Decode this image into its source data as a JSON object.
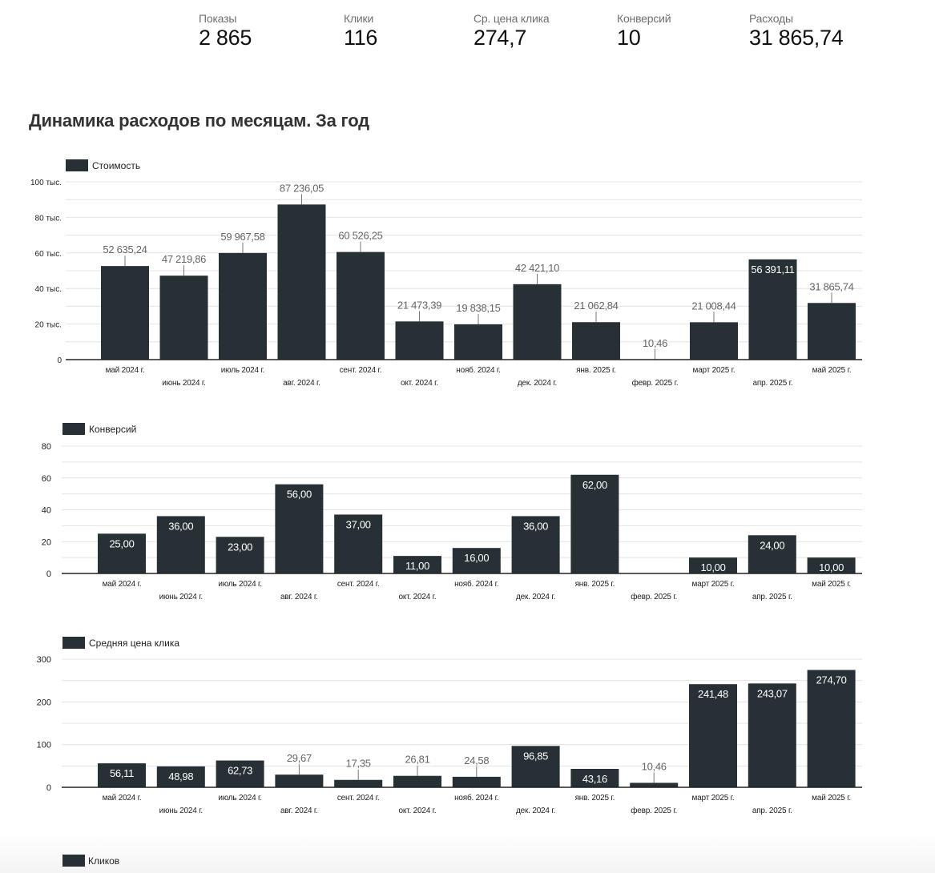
{
  "kpis": [
    {
      "label": "Показы",
      "value": "2 865"
    },
    {
      "label": "Клики",
      "value": "116"
    },
    {
      "label": "Ср. цена клика",
      "value": "274,7"
    },
    {
      "label": "Конверсий",
      "value": "10"
    },
    {
      "label": "Расходы",
      "value": "31 865,74"
    }
  ],
  "page_title": "Динамика расходов по месяцам. За год",
  "colors": {
    "bar": "#263035",
    "grid": "#e4e4e4",
    "axis": "#222222",
    "label_outside": "#666666",
    "label_inside": "#ffffff"
  },
  "chart_data": [
    {
      "type": "bar",
      "title": "",
      "legend": "Стоимость",
      "legend_position": "top-left",
      "categories": [
        "май 2024 г.",
        "июнь 2024 г.",
        "июль 2024 г.",
        "авг. 2024 г.",
        "сент. 2024 г.",
        "окт. 2024 г.",
        "нояб. 2024 г.",
        "дек. 2024 г.",
        "янв. 2025 г.",
        "февр. 2025 г.",
        "март 2025 г.",
        "апр. 2025 г.",
        "май 2025 г."
      ],
      "values": [
        52635.24,
        47219.86,
        59967.58,
        87236.05,
        60526.25,
        21473.39,
        19838.15,
        42421.1,
        21062.84,
        10.46,
        21008.44,
        56391.11,
        31865.74
      ],
      "data_labels": [
        "52 635,24",
        "47 219,86",
        "59 967,58",
        "87 236,05",
        "60 526,25",
        "21 473,39",
        "19 838,15",
        "42 421,10",
        "21 062,84",
        "10,46",
        "21 008,44",
        "56 391,11",
        "31 865,74"
      ],
      "label_inside": [
        false,
        false,
        false,
        false,
        false,
        false,
        false,
        false,
        false,
        false,
        false,
        true,
        false
      ],
      "ylim": [
        0,
        100000
      ],
      "yticks": [
        0,
        20000,
        40000,
        60000,
        80000,
        100000
      ],
      "ytick_labels": [
        "0",
        "20 тыс.",
        "40 тыс.",
        "60 тыс.",
        "80 тыс.",
        "100 тыс."
      ],
      "grid_step": 10000,
      "grid": true
    },
    {
      "type": "bar",
      "title": "",
      "legend": "Конверсий",
      "legend_position": "top-left",
      "categories": [
        "май 2024 г.",
        "июнь 2024 г.",
        "июль 2024 г.",
        "авг. 2024 г.",
        "сент. 2024 г.",
        "окт. 2024 г.",
        "нояб. 2024 г.",
        "дек. 2024 г.",
        "янв. 2025 г.",
        "февр. 2025 г.",
        "март 2025 г.",
        "апр. 2025 г.",
        "май 2025 г."
      ],
      "values": [
        25,
        36,
        23,
        56,
        37,
        11,
        16,
        36,
        62,
        0,
        10,
        24,
        10
      ],
      "data_labels": [
        "25,00",
        "36,00",
        "23,00",
        "56,00",
        "37,00",
        "11,00",
        "16,00",
        "36,00",
        "62,00",
        "",
        "10,00",
        "24,00",
        "10,00"
      ],
      "label_inside": [
        true,
        true,
        true,
        true,
        true,
        true,
        true,
        true,
        true,
        true,
        true,
        true,
        true
      ],
      "ylim": [
        0,
        80
      ],
      "yticks": [
        0,
        20,
        40,
        60,
        80
      ],
      "ytick_labels": [
        "0",
        "20",
        "40",
        "60",
        "80"
      ],
      "grid_step": 10,
      "grid": true
    },
    {
      "type": "bar",
      "title": "",
      "legend": "Средняя цена клика",
      "legend_position": "top-left",
      "categories": [
        "май 2024 г.",
        "июнь 2024 г.",
        "июль 2024 г.",
        "авг. 2024 г.",
        "сент. 2024 г.",
        "окт. 2024 г.",
        "нояб. 2024 г.",
        "дек. 2024 г.",
        "янв. 2025 г.",
        "февр. 2025 г.",
        "март 2025 г.",
        "апр. 2025 г.",
        "май 2025 г."
      ],
      "values": [
        56.11,
        48.98,
        62.73,
        29.67,
        17.35,
        26.81,
        24.58,
        96.85,
        43.16,
        10.46,
        241.48,
        243.07,
        274.7
      ],
      "data_labels": [
        "56,11",
        "48,98",
        "62,73",
        "29,67",
        "17,35",
        "26,81",
        "24,58",
        "96,85",
        "43,16",
        "10,46",
        "241,48",
        "243,07",
        "274,70"
      ],
      "label_inside": [
        true,
        true,
        true,
        false,
        false,
        false,
        false,
        true,
        true,
        false,
        true,
        true,
        true
      ],
      "ylim": [
        0,
        300
      ],
      "yticks": [
        0,
        100,
        200,
        300
      ],
      "ytick_labels": [
        "0",
        "100",
        "200",
        "300"
      ],
      "grid_step": 50,
      "grid": true
    }
  ],
  "next_chart_legend": "Кликов"
}
